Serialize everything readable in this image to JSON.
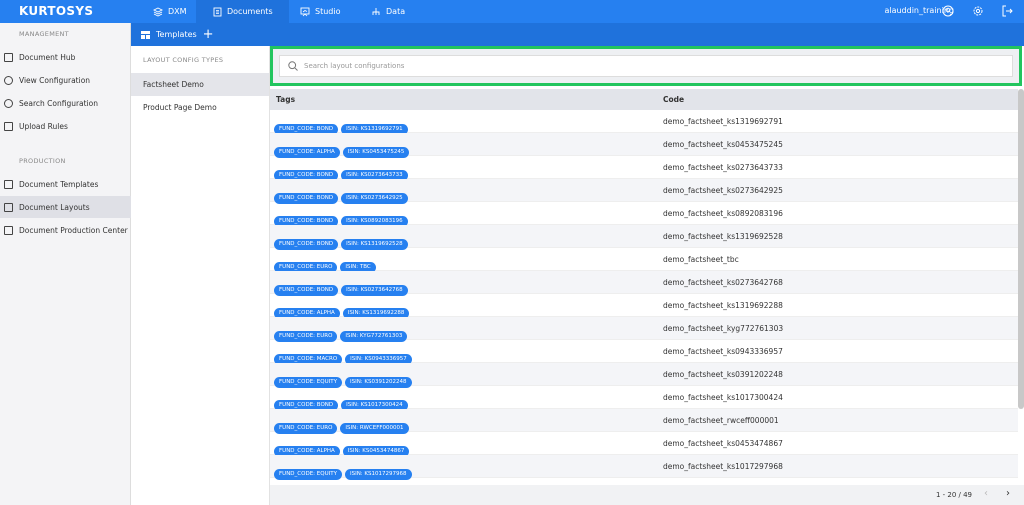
{
  "brand": "KURTOSYS",
  "nav": [
    {
      "label": "DXM",
      "icon": "layers-icon"
    },
    {
      "label": "Documents",
      "icon": "document-icon",
      "active": true
    },
    {
      "label": "Studio",
      "icon": "presentation-icon"
    },
    {
      "label": "Data",
      "icon": "hierarchy-icon"
    }
  ],
  "user": {
    "name": "alauddin_training"
  },
  "sidebar": {
    "sections": [
      {
        "title": "MANAGEMENT",
        "items": [
          {
            "label": "Document Hub",
            "icon": "file-icon"
          },
          {
            "label": "View Configuration",
            "icon": "gear-icon"
          },
          {
            "label": "Search Configuration",
            "icon": "search-icon"
          },
          {
            "label": "Upload Rules",
            "icon": "upload-icon"
          }
        ]
      },
      {
        "title": "PRODUCTION",
        "items": [
          {
            "label": "Document Templates",
            "icon": "image-icon"
          },
          {
            "label": "Document Layouts",
            "icon": "layout-icon",
            "active": true
          },
          {
            "label": "Document Production Center",
            "icon": "file-export-icon"
          }
        ]
      }
    ]
  },
  "subheader": {
    "title": "Templates",
    "add": "+"
  },
  "types": {
    "header": "LAYOUT CONFIG TYPES",
    "items": [
      {
        "label": "Factsheet Demo",
        "active": true
      },
      {
        "label": "Product Page Demo"
      }
    ]
  },
  "search": {
    "placeholder": "Search layout configurations"
  },
  "table": {
    "columns": [
      "Tags",
      "Code"
    ],
    "rows": [
      {
        "fund": "FUND_CODE: BOND",
        "isin": "ISIN: KS1319692791",
        "code": "demo_factsheet_ks1319692791"
      },
      {
        "fund": "FUND_CODE: ALPHA",
        "isin": "ISIN: KS0453475245",
        "code": "demo_factsheet_ks0453475245"
      },
      {
        "fund": "FUND_CODE: BOND",
        "isin": "ISIN: KS0273643733",
        "code": "demo_factsheet_ks0273643733"
      },
      {
        "fund": "FUND_CODE: BOND",
        "isin": "ISIN: KS0273642925",
        "code": "demo_factsheet_ks0273642925"
      },
      {
        "fund": "FUND_CODE: BOND",
        "isin": "ISIN: KS0892083196",
        "code": "demo_factsheet_ks0892083196"
      },
      {
        "fund": "FUND_CODE: BOND",
        "isin": "ISIN: KS1319692528",
        "code": "demo_factsheet_ks1319692528"
      },
      {
        "fund": "FUND_CODE: EURO",
        "isin": "ISIN: TBC",
        "code": "demo_factsheet_tbc"
      },
      {
        "fund": "FUND_CODE: BOND",
        "isin": "ISIN: KS0273642768",
        "code": "demo_factsheet_ks0273642768"
      },
      {
        "fund": "FUND_CODE: ALPHA",
        "isin": "ISIN: KS1319692288",
        "code": "demo_factsheet_ks1319692288"
      },
      {
        "fund": "FUND_CODE: EURO",
        "isin": "ISIN: KYG772761303",
        "code": "demo_factsheet_kyg772761303"
      },
      {
        "fund": "FUND_CODE: MACRO",
        "isin": "ISIN: KS0943336957",
        "code": "demo_factsheet_ks0943336957"
      },
      {
        "fund": "FUND_CODE: EQUITY",
        "isin": "ISIN: KS0391202248",
        "code": "demo_factsheet_ks0391202248"
      },
      {
        "fund": "FUND_CODE: BOND",
        "isin": "ISIN: KS1017300424",
        "code": "demo_factsheet_ks1017300424"
      },
      {
        "fund": "FUND_CODE: EURO",
        "isin": "ISIN: RWCEFF000001",
        "code": "demo_factsheet_rwceff000001"
      },
      {
        "fund": "FUND_CODE: ALPHA",
        "isin": "ISIN: KS0453474867",
        "code": "demo_factsheet_ks0453474867"
      },
      {
        "fund": "FUND_CODE: EQUITY",
        "isin": "ISIN: KS1017297968",
        "code": "demo_factsheet_ks1017297968"
      },
      {
        "fund": "",
        "isin": "",
        "code": ""
      }
    ]
  },
  "pagination": {
    "range": "1 - 20 / 49",
    "prev": "‹",
    "next": "›"
  }
}
